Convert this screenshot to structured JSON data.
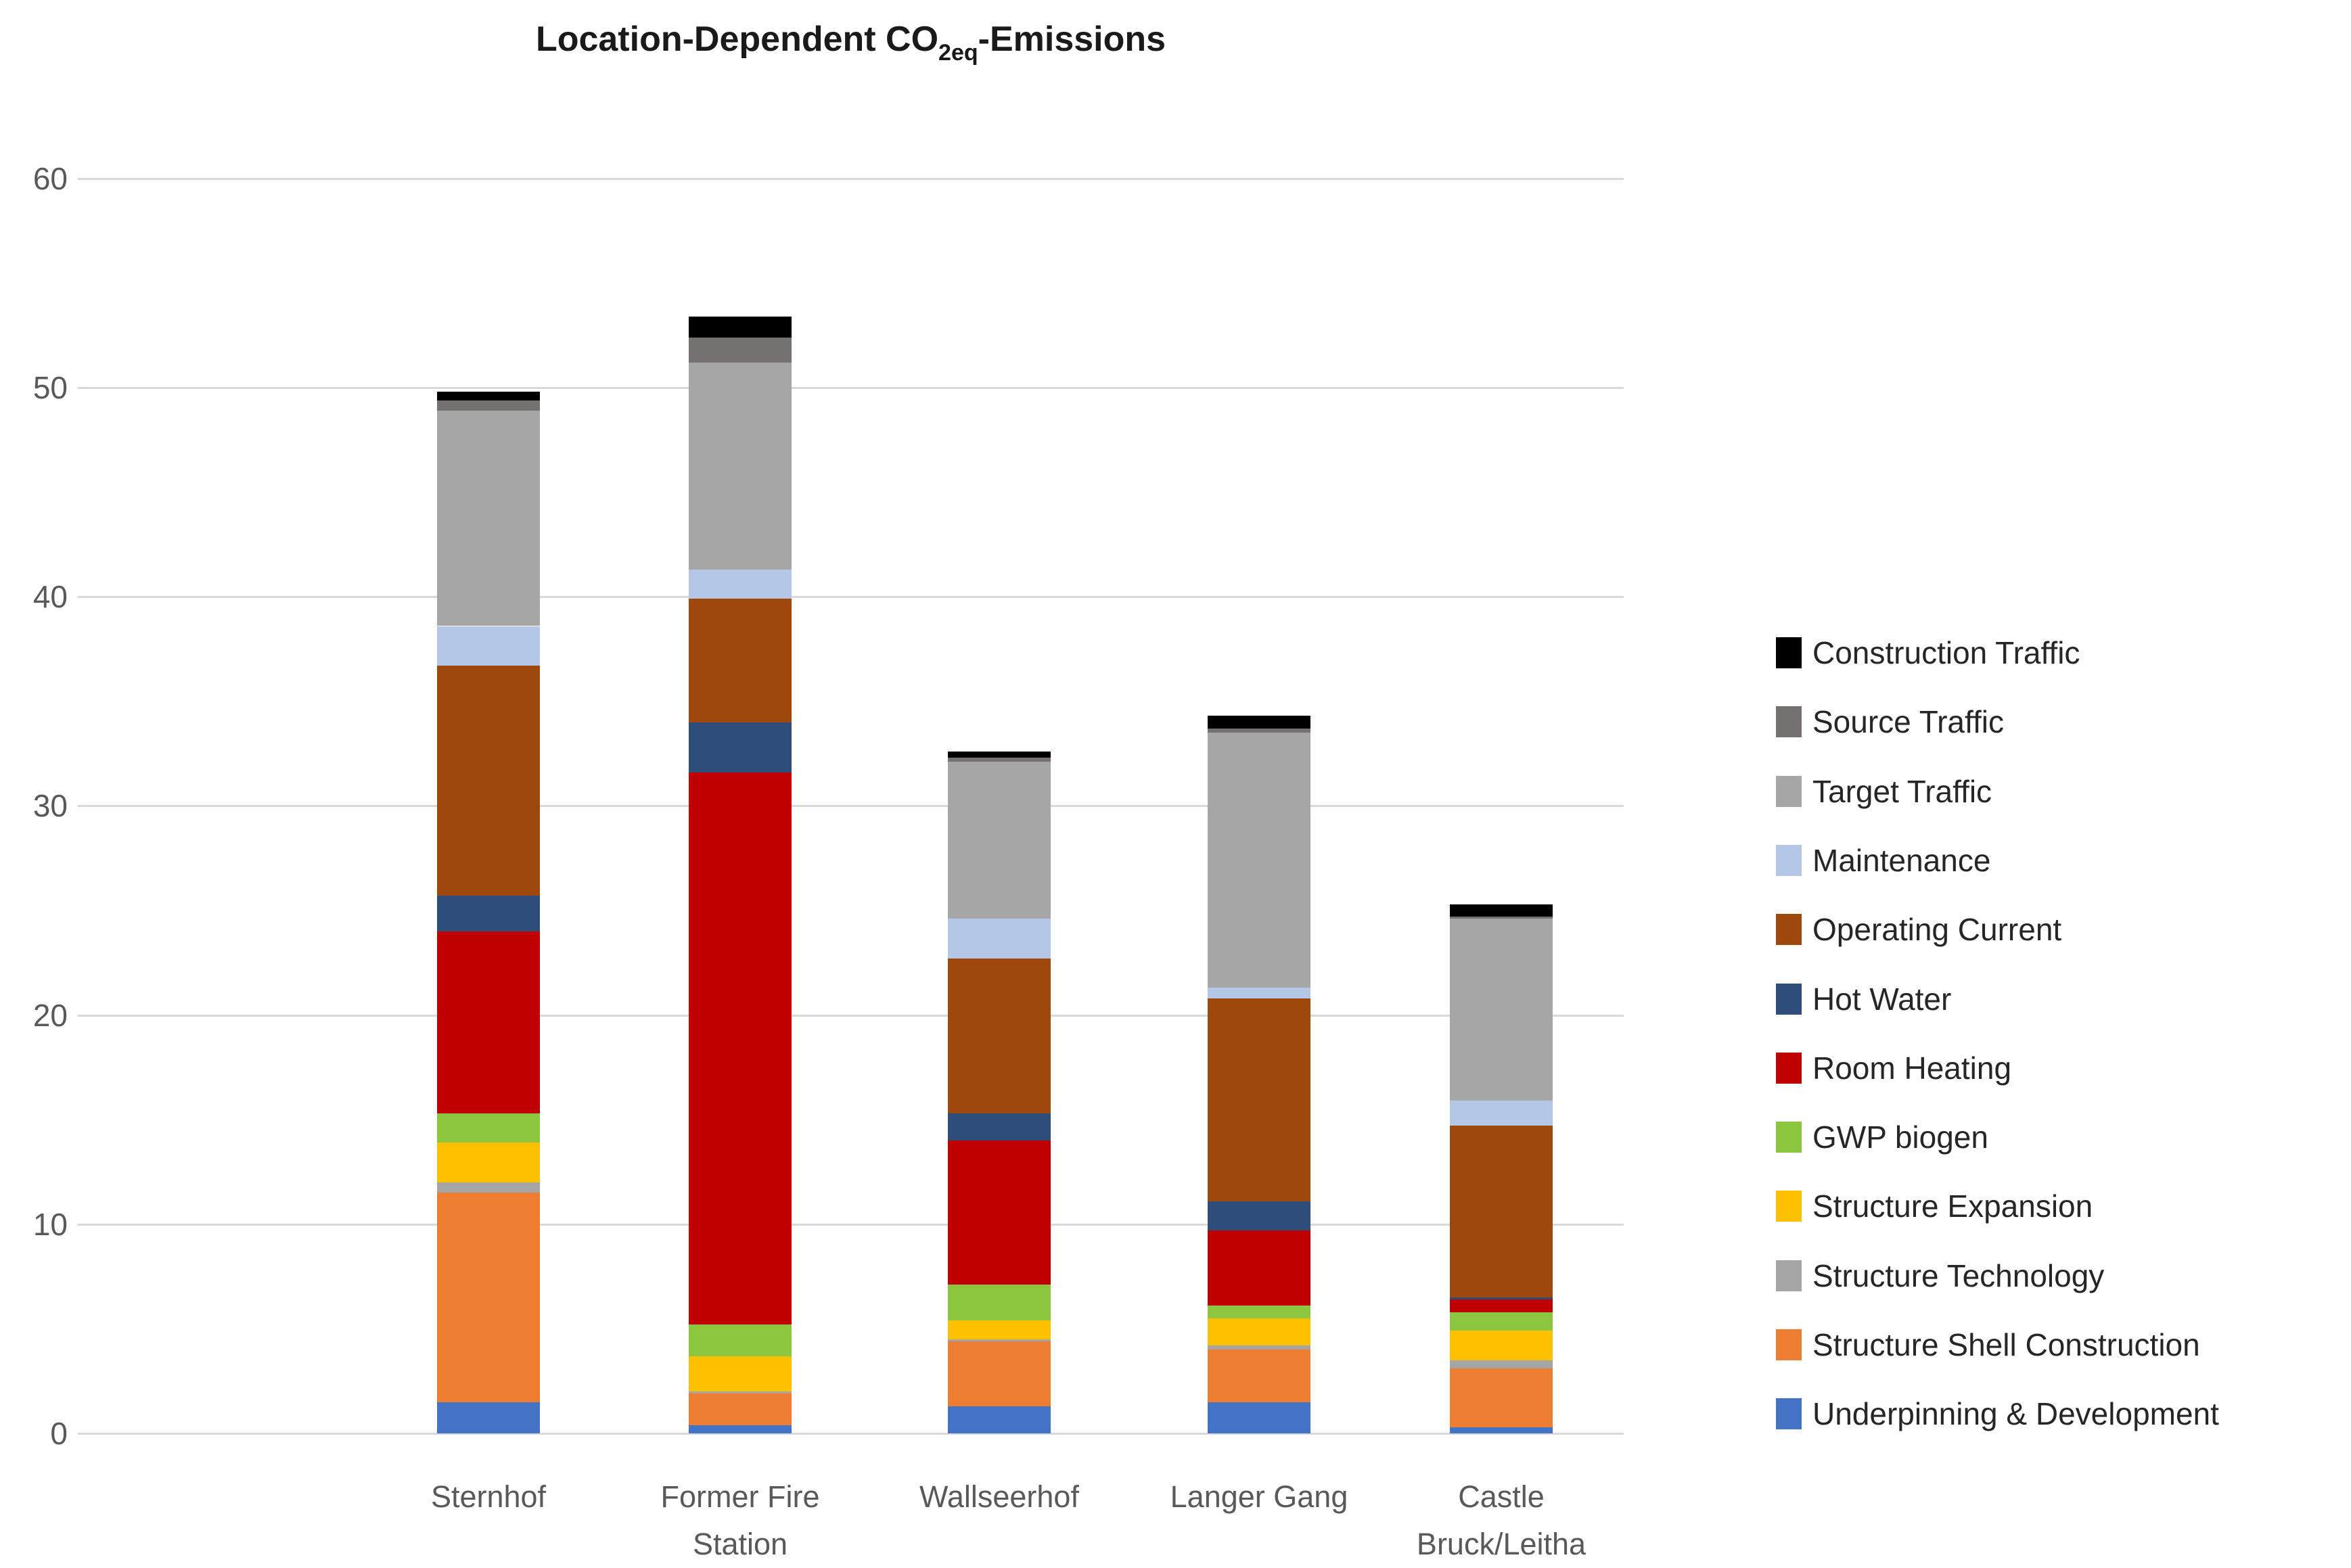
{
  "title": {
    "prefix": "Location-Dependent CO",
    "subscript": "2eq",
    "suffix": "-Emissions"
  },
  "y_axis": {
    "ticks": [
      0,
      10,
      20,
      30,
      40,
      50,
      60
    ],
    "min": 0,
    "max": 60
  },
  "x_axis": {
    "labels_display": [
      [
        "Sternhof"
      ],
      [
        "Former Fire",
        "Station"
      ],
      [
        "Wallseerhof"
      ],
      [
        "Langer Gang"
      ],
      [
        "Castle",
        "Bruck/Leitha"
      ]
    ]
  },
  "chart_data": {
    "type": "bar",
    "stacked": true,
    "title": "Location-Dependent CO2eq-Emissions",
    "xlabel": "",
    "ylabel": "",
    "ylim": [
      0,
      60
    ],
    "grid": true,
    "legend_position": "right",
    "categories": [
      "Sternhof",
      "Former Fire Station",
      "Wallseerhof",
      "Langer Gang",
      "Castle Bruck/Leitha"
    ],
    "series": [
      {
        "name": "Construction Traffic",
        "color": "#000000",
        "values": [
          0.4,
          1.0,
          0.3,
          0.6,
          0.6
        ]
      },
      {
        "name": "Source Traffic",
        "color": "#767171",
        "values": [
          0.5,
          1.2,
          0.2,
          0.2,
          0.1
        ]
      },
      {
        "name": "Target Traffic",
        "color": "#A6A6A6",
        "values": [
          10.3,
          9.9,
          7.5,
          12.2,
          8.7
        ]
      },
      {
        "name": "Maintenance",
        "color": "#B4C7E7",
        "values": [
          1.9,
          1.4,
          1.9,
          0.5,
          1.2
        ]
      },
      {
        "name": "Operating Current",
        "color": "#9E480E",
        "values": [
          11.0,
          5.9,
          7.4,
          9.7,
          8.2
        ]
      },
      {
        "name": "Hot Water",
        "color": "#2E4D7B",
        "values": [
          1.7,
          2.4,
          1.3,
          1.4,
          0.1
        ]
      },
      {
        "name": "Room Heating",
        "color": "#C00000",
        "values": [
          8.7,
          26.4,
          6.9,
          3.6,
          0.6
        ]
      },
      {
        "name": "GWP biogen",
        "color": "#8CC63E",
        "values": [
          1.4,
          1.5,
          1.7,
          0.6,
          0.9
        ]
      },
      {
        "name": "Structure Expansion",
        "color": "#FFC000",
        "values": [
          1.9,
          1.7,
          0.9,
          1.3,
          1.4
        ]
      },
      {
        "name": "Structure Technology",
        "color": "#A5A5A5",
        "values": [
          0.5,
          0.1,
          0.1,
          0.2,
          0.4
        ]
      },
      {
        "name": "Structure Shell Construction",
        "color": "#ED7D31",
        "values": [
          10.0,
          1.5,
          3.1,
          2.5,
          2.8
        ]
      },
      {
        "name": "Underpinning & Development",
        "color": "#4472C4",
        "values": [
          1.5,
          0.4,
          1.3,
          1.5,
          0.3
        ]
      }
    ]
  }
}
